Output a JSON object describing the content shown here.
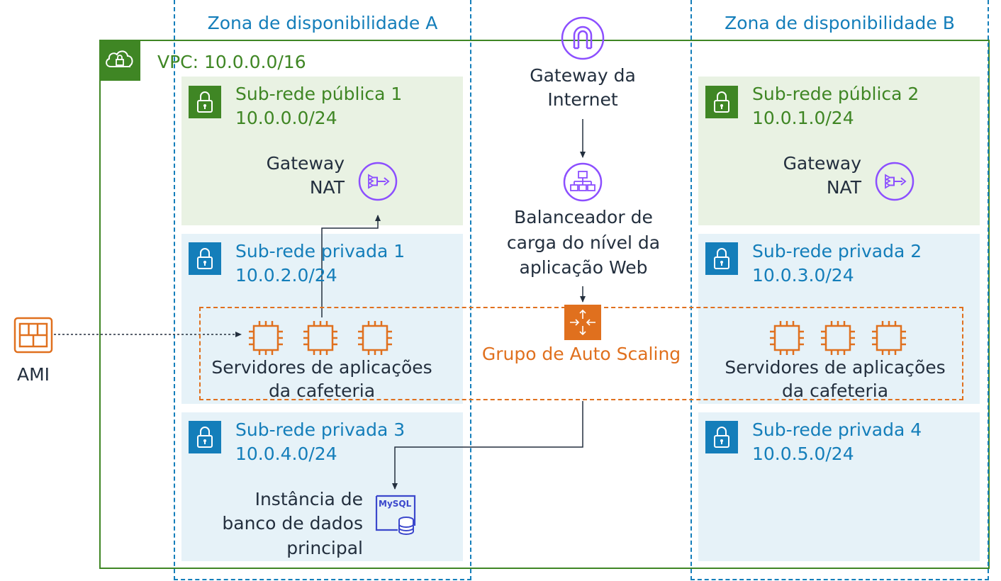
{
  "availability_zones": [
    {
      "label": "Zona de disponibilidade A"
    },
    {
      "label": "Zona de disponibilidade B"
    }
  ],
  "vpc": {
    "label": "VPC: 10.0.0.0/16"
  },
  "subnets": [
    {
      "name": "Sub-rede pública 1",
      "cidr": "10.0.0.0/24"
    },
    {
      "name": "Sub-rede pública 2",
      "cidr": "10.0.1.0/24"
    },
    {
      "name": "Sub-rede privada 1",
      "cidr": "10.0.2.0/24"
    },
    {
      "name": "Sub-rede privada 2",
      "cidr": "10.0.3.0/24"
    },
    {
      "name": "Sub-rede privada 3",
      "cidr": "10.0.4.0/24"
    },
    {
      "name": "Sub-rede privada 4",
      "cidr": "10.0.5.0/24"
    }
  ],
  "nat_gateway": {
    "line1": "Gateway",
    "line2": "NAT"
  },
  "internet_gateway": {
    "line1": "Gateway da",
    "line2": "Internet"
  },
  "load_balancer": {
    "line1": "Balanceador de",
    "line2": "carga do nível da",
    "line3": "aplicação Web"
  },
  "auto_scaling": {
    "label": "Grupo de Auto Scaling"
  },
  "app_servers": {
    "line1": "Servidores de aplicações",
    "line2": "da cafeteria"
  },
  "database": {
    "line1": "Instância de",
    "line2": "banco de dados",
    "line3": "principal",
    "icon_text": "MySQL"
  },
  "ami": {
    "label": "AMI"
  },
  "colors": {
    "vpc_green": "#3f8624",
    "private_blue": "#147eba",
    "public_bg": "#e9f2e3",
    "private_bg": "#e6f2f8",
    "purple": "#8c4fff",
    "orange": "#e0701e",
    "mysql_blue": "#3b48cc"
  }
}
